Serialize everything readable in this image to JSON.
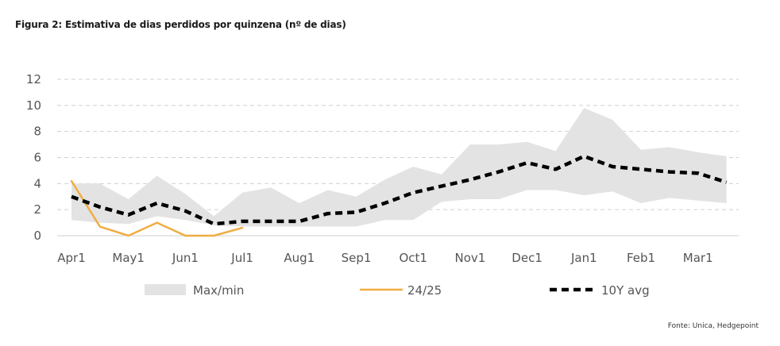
{
  "title": "Figura 2: Estimativa de dias perdidos por quinzena (nº de dias)",
  "source": "Fonte: Unica, Hedgepoint",
  "chart_data": {
    "type": "line",
    "title": "Figura 2: Estimativa de dias perdidos por quinzena (nº de dias)",
    "xlabel": "",
    "ylabel": "",
    "ylim": [
      0,
      12
    ],
    "yticks": [
      0,
      2,
      4,
      6,
      8,
      10,
      12
    ],
    "grid": true,
    "legend_position": "bottom",
    "x_tick_labels": [
      "Apr1",
      "May1",
      "Jun1",
      "Jul1",
      "Aug1",
      "Sep1",
      "Oct1",
      "Nov1",
      "Dec1",
      "Jan1",
      "Feb1",
      "Mar1"
    ],
    "x": [
      "Apr1",
      "Apr2",
      "May1",
      "May2",
      "Jun1",
      "Jun2",
      "Jul1",
      "Jul2",
      "Aug1",
      "Aug2",
      "Sep1",
      "Sep2",
      "Oct1",
      "Oct2",
      "Nov1",
      "Nov2",
      "Dec1",
      "Dec2",
      "Jan1",
      "Jan2",
      "Feb1",
      "Feb2",
      "Mar1",
      "Mar2"
    ],
    "band": {
      "name": "Max/min",
      "color": "#e3e3e3",
      "max": [
        4.0,
        4.0,
        2.8,
        4.6,
        3.2,
        1.5,
        3.3,
        3.7,
        2.5,
        3.5,
        3.0,
        4.3,
        5.3,
        4.7,
        7.0,
        7.0,
        7.2,
        6.5,
        9.8,
        8.9,
        6.6,
        6.8,
        6.4,
        6.1
      ],
      "min": [
        1.2,
        1.0,
        0.9,
        1.5,
        1.2,
        0.8,
        0.7,
        0.7,
        0.7,
        0.7,
        0.7,
        1.2,
        1.2,
        2.6,
        2.8,
        2.8,
        3.5,
        3.5,
        3.1,
        3.4,
        2.5,
        2.9,
        2.7,
        2.5
      ]
    },
    "series": [
      {
        "name": "24/25",
        "color": "#f0ad42",
        "style": "solid",
        "values": [
          4.2,
          0.7,
          0.0,
          1.0,
          0.0,
          0.0,
          0.6,
          null,
          null,
          null,
          null,
          null,
          null,
          null,
          null,
          null,
          null,
          null,
          null,
          null,
          null,
          null,
          null,
          null
        ]
      },
      {
        "name": "10Y avg",
        "color": "#000000",
        "style": "dashed",
        "values": [
          3.0,
          2.2,
          1.6,
          2.5,
          1.9,
          0.9,
          1.1,
          1.1,
          1.1,
          1.7,
          1.8,
          2.5,
          3.3,
          3.8,
          4.3,
          4.9,
          5.6,
          5.1,
          6.1,
          5.3,
          5.1,
          4.9,
          4.8,
          4.1
        ]
      }
    ]
  }
}
